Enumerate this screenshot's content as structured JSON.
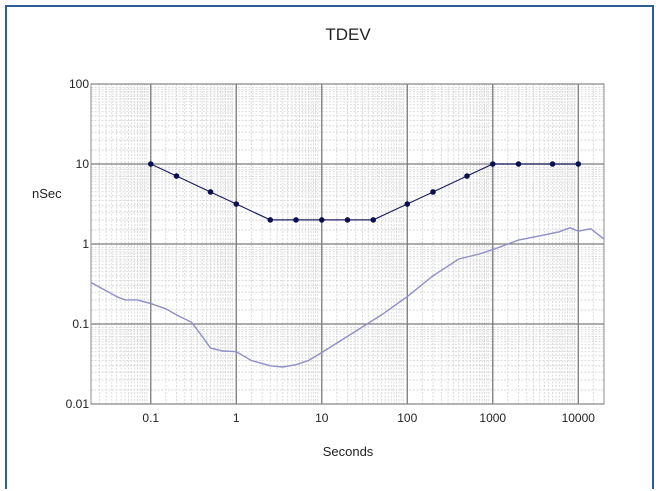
{
  "chart_data": {
    "type": "line",
    "title": "TDEV",
    "xlabel": "Seconds",
    "ylabel": "nSec",
    "x_scale": "log",
    "y_scale": "log",
    "xlim": [
      0.02,
      20000
    ],
    "ylim": [
      0.01,
      100
    ],
    "x_ticks": [
      {
        "value": 0.1,
        "label": "0.1"
      },
      {
        "value": 1,
        "label": "1"
      },
      {
        "value": 10,
        "label": "10"
      },
      {
        "value": 100,
        "label": "100"
      },
      {
        "value": 1000,
        "label": "1000"
      },
      {
        "value": 10000,
        "label": "10000"
      }
    ],
    "y_ticks": [
      {
        "value": 0.01,
        "label": "0.01"
      },
      {
        "value": 0.1,
        "label": "0.1"
      },
      {
        "value": 1,
        "label": "1"
      },
      {
        "value": 10,
        "label": "10"
      },
      {
        "value": 100,
        "label": "100"
      }
    ],
    "grid": true,
    "legend": false,
    "series": [
      {
        "style": "line-with-markers",
        "color": "#1a1f5e",
        "marker_color": "#0c1050",
        "points": [
          [
            0.1,
            10
          ],
          [
            0.2,
            7.07
          ],
          [
            0.5,
            4.47
          ],
          [
            1,
            3.16
          ],
          [
            2.5,
            2
          ],
          [
            5,
            2
          ],
          [
            10,
            2
          ],
          [
            20,
            2
          ],
          [
            40,
            2
          ],
          [
            100,
            3.16
          ],
          [
            200,
            4.47
          ],
          [
            500,
            7.07
          ],
          [
            1000,
            10
          ],
          [
            2000,
            10
          ],
          [
            5000,
            10
          ],
          [
            10000,
            10
          ]
        ]
      },
      {
        "style": "line",
        "color": "#8f8fc9",
        "points": [
          [
            0.02,
            0.33
          ],
          [
            0.03,
            0.26
          ],
          [
            0.04,
            0.22
          ],
          [
            0.05,
            0.2
          ],
          [
            0.07,
            0.2
          ],
          [
            0.1,
            0.18
          ],
          [
            0.15,
            0.155
          ],
          [
            0.2,
            0.13
          ],
          [
            0.3,
            0.105
          ],
          [
            0.4,
            0.07
          ],
          [
            0.5,
            0.05
          ],
          [
            0.7,
            0.046
          ],
          [
            1,
            0.045
          ],
          [
            1.5,
            0.035
          ],
          [
            2.5,
            0.03
          ],
          [
            3.5,
            0.029
          ],
          [
            5,
            0.031
          ],
          [
            7,
            0.035
          ],
          [
            10,
            0.044
          ],
          [
            20,
            0.07
          ],
          [
            50,
            0.13
          ],
          [
            100,
            0.22
          ],
          [
            200,
            0.4
          ],
          [
            400,
            0.65
          ],
          [
            700,
            0.75
          ],
          [
            1000,
            0.85
          ],
          [
            2000,
            1.12
          ],
          [
            4000,
            1.3
          ],
          [
            6000,
            1.42
          ],
          [
            8000,
            1.6
          ],
          [
            10000,
            1.45
          ],
          [
            14000,
            1.55
          ],
          [
            20000,
            1.15
          ]
        ]
      }
    ]
  }
}
